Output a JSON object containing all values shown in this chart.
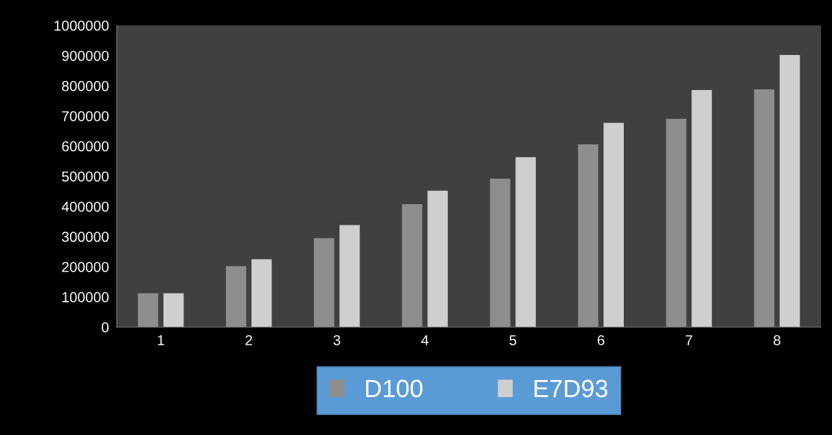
{
  "chart_data": {
    "type": "bar",
    "categories": [
      "1",
      "2",
      "3",
      "4",
      "5",
      "6",
      "7",
      "8"
    ],
    "series": [
      {
        "name": "D100",
        "color": "#8e8e8e",
        "values": [
          112000,
          202000,
          295000,
          408000,
          492000,
          606000,
          690000,
          788000
        ]
      },
      {
        "name": "E7D93",
        "color": "#cfcfcf",
        "values": [
          112000,
          225000,
          338000,
          452000,
          563000,
          677000,
          786000,
          902000
        ]
      }
    ],
    "ylim": [
      0,
      1000000
    ],
    "yticks": [
      0,
      100000,
      200000,
      300000,
      400000,
      500000,
      600000,
      700000,
      800000,
      900000,
      1000000
    ],
    "grid": false,
    "legend": "bottom"
  }
}
